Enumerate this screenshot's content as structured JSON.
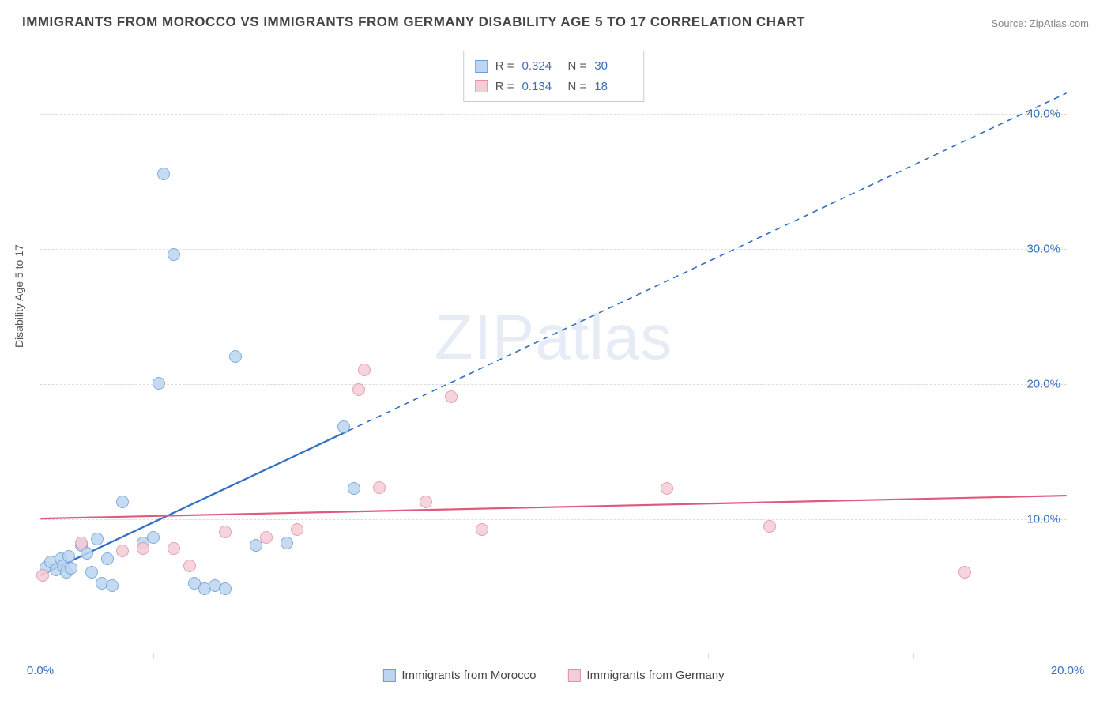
{
  "title": "IMMIGRANTS FROM MOROCCO VS IMMIGRANTS FROM GERMANY DISABILITY AGE 5 TO 17 CORRELATION CHART",
  "source": "Source: ZipAtlas.com",
  "watermark_a": "ZIP",
  "watermark_b": "atlas",
  "chart": {
    "type": "scatter",
    "y_label": "Disability Age 5 to 17",
    "x_range": [
      0,
      20
    ],
    "y_range": [
      0,
      45
    ],
    "x_ticks": [
      0,
      20
    ],
    "x_tick_labels": [
      "0.0%",
      "20.0%"
    ],
    "x_minor_ticks": [
      2.2,
      6.5,
      9.0,
      13.0,
      17.0
    ],
    "y_ticks": [
      10,
      20,
      30,
      40
    ],
    "y_tick_labels": [
      "10.0%",
      "20.0%",
      "30.0%",
      "40.0%"
    ],
    "grid_color": "#dddddd",
    "axis_color": "#cccccc",
    "background_color": "#ffffff",
    "marker_size": 16,
    "legend_top": [
      {
        "swatch_fill": "#bcd5f0",
        "swatch_border": "#6a9fd9",
        "r": "0.324",
        "n": "30"
      },
      {
        "swatch_fill": "#f5cdd7",
        "swatch_border": "#e48fa4",
        "r": "0.134",
        "n": "18"
      }
    ],
    "legend_bottom": [
      {
        "swatch_fill": "#bcd5f0",
        "swatch_border": "#6a9fd9",
        "label": "Immigrants from Morocco"
      },
      {
        "swatch_fill": "#f5cdd7",
        "swatch_border": "#e48fa4",
        "label": "Immigrants from Germany"
      }
    ],
    "series": [
      {
        "name": "Immigrants from Morocco",
        "fill": "#bcd5f0",
        "border": "#6a9fd9",
        "regression": {
          "x1": 0.0,
          "y1": 5.8,
          "x2_solid": 6.0,
          "y2_solid": 16.5,
          "x2_dash": 20.0,
          "y2_dash": 41.5,
          "color": "#2f6fc6",
          "width": 2.2
        },
        "points": [
          [
            0.1,
            6.4
          ],
          [
            0.2,
            6.8
          ],
          [
            0.3,
            6.2
          ],
          [
            0.4,
            7.0
          ],
          [
            0.45,
            6.5
          ],
          [
            0.5,
            6.0
          ],
          [
            0.55,
            7.2
          ],
          [
            0.6,
            6.3
          ],
          [
            0.8,
            8.0
          ],
          [
            0.9,
            7.4
          ],
          [
            1.0,
            6.0
          ],
          [
            1.1,
            8.5
          ],
          [
            1.2,
            5.2
          ],
          [
            1.3,
            7.0
          ],
          [
            1.4,
            5.0
          ],
          [
            1.6,
            11.2
          ],
          [
            2.0,
            8.2
          ],
          [
            2.2,
            8.6
          ],
          [
            2.3,
            20.0
          ],
          [
            2.4,
            35.5
          ],
          [
            2.6,
            29.5
          ],
          [
            3.0,
            5.2
          ],
          [
            3.2,
            4.8
          ],
          [
            3.4,
            5.0
          ],
          [
            3.6,
            4.8
          ],
          [
            3.8,
            22.0
          ],
          [
            4.2,
            8.0
          ],
          [
            4.8,
            8.2
          ],
          [
            5.9,
            16.8
          ],
          [
            6.1,
            12.2
          ]
        ]
      },
      {
        "name": "Immigrants from Germany",
        "fill": "#f5cdd7",
        "border": "#e48fa4",
        "regression": {
          "x1": 0.0,
          "y1": 10.0,
          "x2_solid": 20.0,
          "y2_solid": 11.7,
          "x2_dash": 20.0,
          "y2_dash": 11.7,
          "color": "#e05a7d",
          "width": 2.2
        },
        "points": [
          [
            0.05,
            5.8
          ],
          [
            0.8,
            8.2
          ],
          [
            1.6,
            7.6
          ],
          [
            2.0,
            7.8
          ],
          [
            2.6,
            7.8
          ],
          [
            2.9,
            6.5
          ],
          [
            3.6,
            9.0
          ],
          [
            4.4,
            8.6
          ],
          [
            5.0,
            9.2
          ],
          [
            6.2,
            19.5
          ],
          [
            6.3,
            21.0
          ],
          [
            6.6,
            12.3
          ],
          [
            7.5,
            11.2
          ],
          [
            8.0,
            19.0
          ],
          [
            8.6,
            9.2
          ],
          [
            12.2,
            12.2
          ],
          [
            14.2,
            9.4
          ],
          [
            18.0,
            6.0
          ]
        ]
      }
    ]
  }
}
